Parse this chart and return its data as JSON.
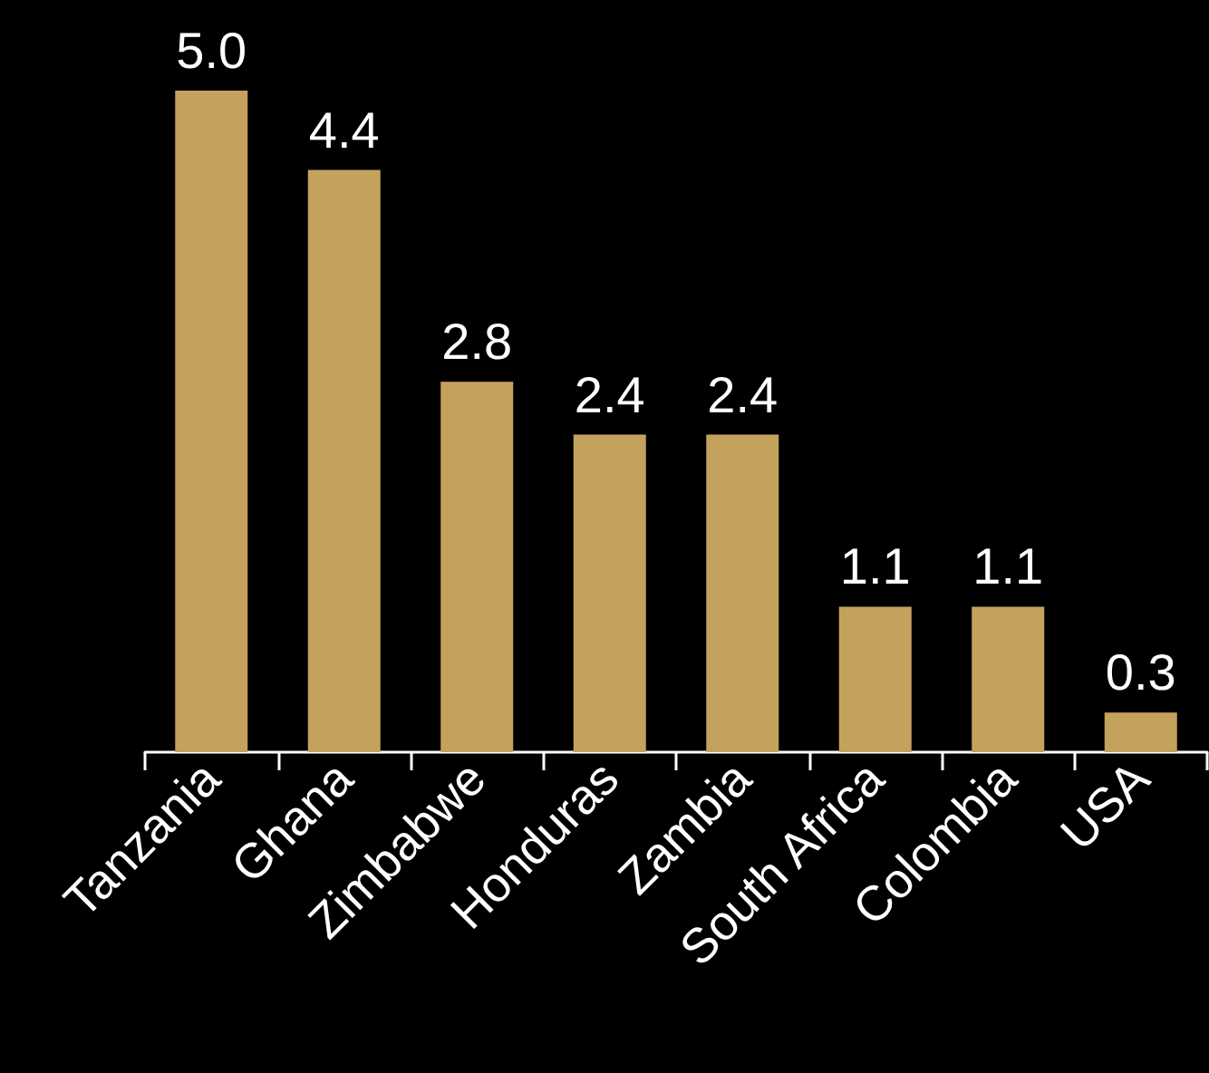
{
  "chart_data": {
    "type": "bar",
    "categories": [
      "Tanzania",
      "Ghana",
      "Zimbabwe",
      "Honduras",
      "Zambia",
      "South Africa",
      "Colombia",
      "USA"
    ],
    "values": [
      5.0,
      4.4,
      2.8,
      2.4,
      2.4,
      1.1,
      1.1,
      0.3
    ],
    "value_labels": [
      "5.0",
      "4.4",
      "2.8",
      "2.4",
      "2.4",
      "1.1",
      "1.1",
      "0.3"
    ],
    "color": "#c4a25e",
    "grid": false
  }
}
